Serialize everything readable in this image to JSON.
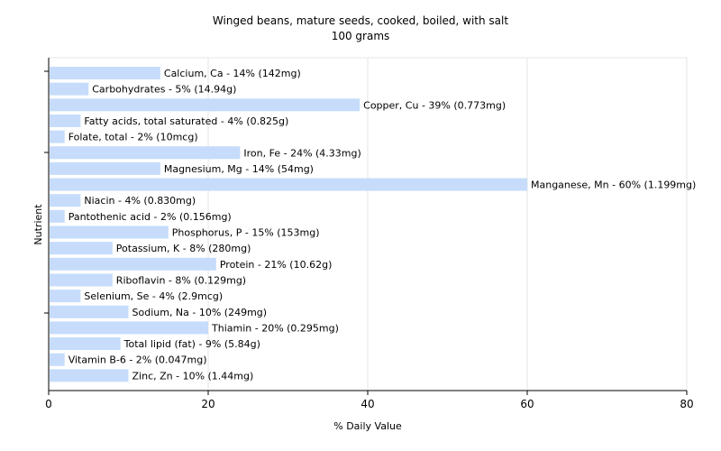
{
  "chart_data": {
    "type": "bar",
    "orientation": "horizontal",
    "title": "Winged beans, mature seeds, cooked, boiled, with salt",
    "subtitle": "100 grams",
    "xlabel": "% Daily Value",
    "ylabel": "Nutrient",
    "xlim": [
      0,
      80
    ],
    "xticks": [
      0,
      20,
      40,
      60,
      80
    ],
    "grid": "vertical",
    "bar_color": "#c6dcfa",
    "categories": [
      "Calcium, Ca",
      "Carbohydrates",
      "Copper, Cu",
      "Fatty acids, total saturated",
      "Folate, total",
      "Iron, Fe",
      "Magnesium, Mg",
      "Manganese, Mn",
      "Niacin",
      "Pantothenic acid",
      "Phosphorus, P",
      "Potassium, K",
      "Protein",
      "Riboflavin",
      "Selenium, Se",
      "Sodium, Na",
      "Thiamin",
      "Total lipid (fat)",
      "Vitamin B-6",
      "Zinc, Zn"
    ],
    "values": [
      14,
      5,
      39,
      4,
      2,
      24,
      14,
      60,
      4,
      2,
      15,
      8,
      21,
      8,
      4,
      10,
      20,
      9,
      2,
      10
    ],
    "labels": [
      "Calcium, Ca - 14% (142mg)",
      "Carbohydrates - 5% (14.94g)",
      "Copper, Cu - 39% (0.773mg)",
      "Fatty acids, total saturated - 4% (0.825g)",
      "Folate, total - 2% (10mcg)",
      "Iron, Fe - 24% (4.33mg)",
      "Magnesium, Mg - 14% (54mg)",
      "Manganese, Mn - 60% (1.199mg)",
      "Niacin - 4% (0.830mg)",
      "Pantothenic acid - 2% (0.156mg)",
      "Phosphorus, P - 15% (153mg)",
      "Potassium, K - 8% (280mg)",
      "Protein - 21% (10.62g)",
      "Riboflavin - 8% (0.129mg)",
      "Selenium, Se - 4% (2.9mcg)",
      "Sodium, Na - 10% (249mg)",
      "Thiamin - 20% (0.295mg)",
      "Total lipid (fat) - 9% (5.84g)",
      "Vitamin B-6 - 2% (0.047mg)",
      "Zinc, Zn - 10% (1.44mg)"
    ]
  }
}
